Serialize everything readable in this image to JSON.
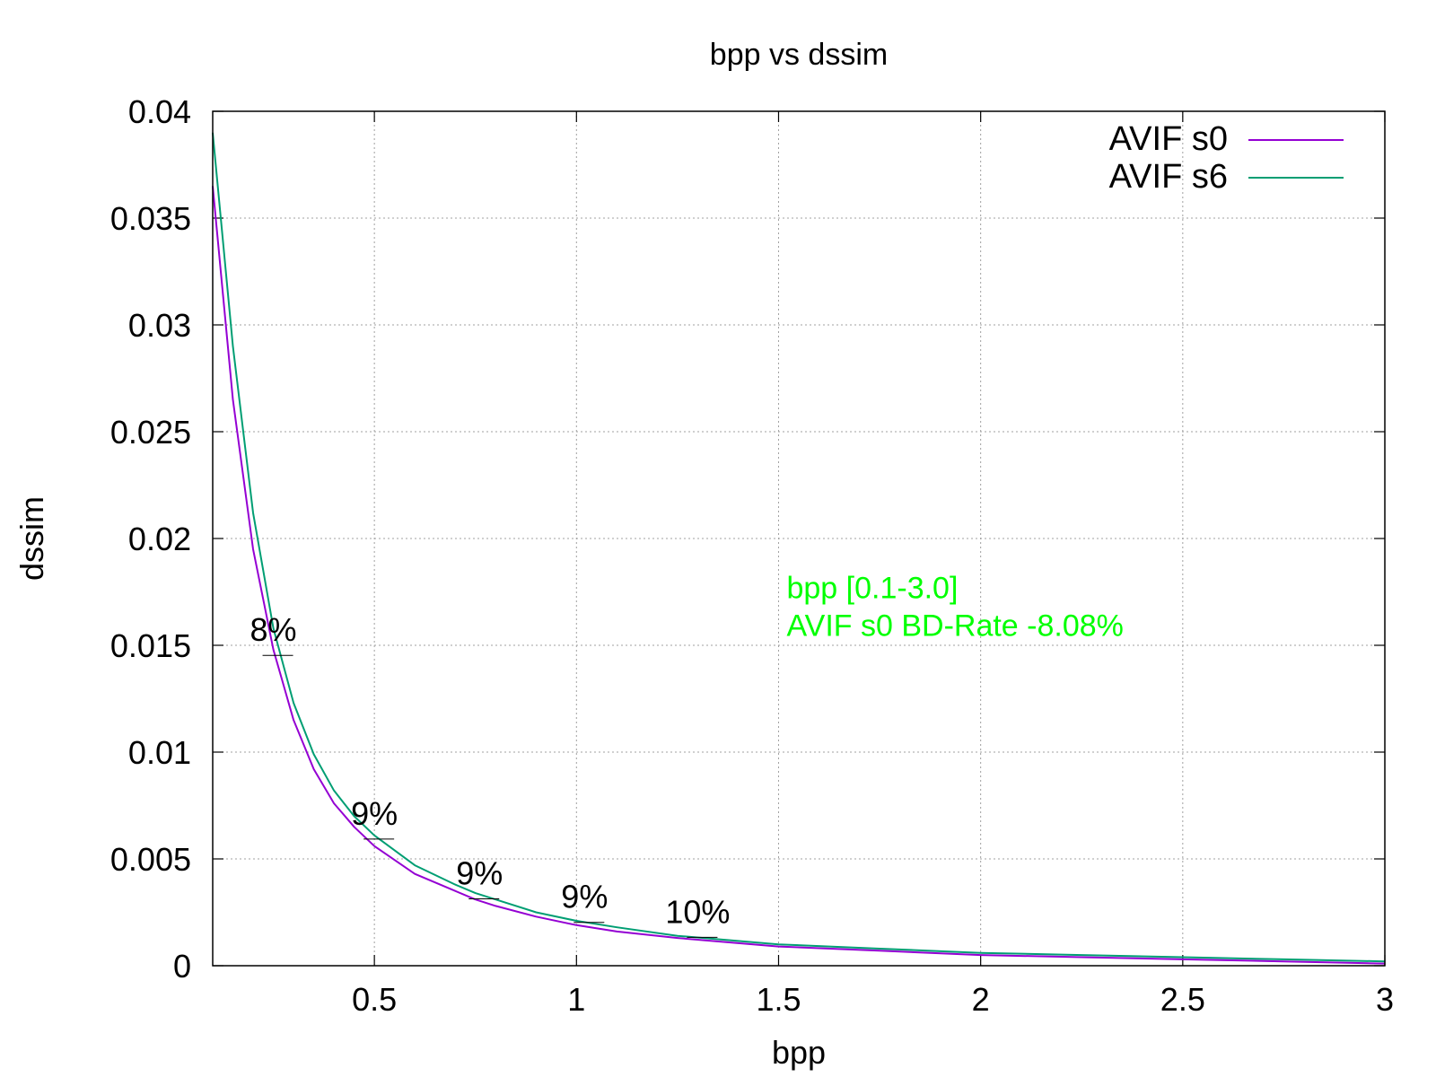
{
  "chart_data": {
    "type": "line",
    "title": "bpp vs dssim",
    "xlabel": "bpp",
    "ylabel": "dssim",
    "xlim": [
      0.1,
      3.0
    ],
    "ylim": [
      0,
      0.04
    ],
    "xticks": [
      "0.5",
      "1",
      "1.5",
      "2",
      "2.5",
      "3"
    ],
    "yticks": [
      "0",
      "0.005",
      "0.01",
      "0.015",
      "0.02",
      "0.025",
      "0.03",
      "0.035",
      "0.04"
    ],
    "grid": true,
    "legend_position": "top-right",
    "series": [
      {
        "name": "AVIF s0",
        "color": "#9400d3",
        "x": [
          0.1,
          0.15,
          0.2,
          0.25,
          0.3,
          0.35,
          0.4,
          0.45,
          0.5,
          0.6,
          0.7,
          0.75,
          0.8,
          0.9,
          1.0,
          1.1,
          1.25,
          1.5,
          1.75,
          2.0,
          2.25,
          2.5,
          2.75,
          3.0
        ],
        "y": [
          0.0365,
          0.0265,
          0.0195,
          0.0148,
          0.0115,
          0.0092,
          0.0076,
          0.0065,
          0.0056,
          0.0043,
          0.0035,
          0.0031,
          0.0028,
          0.0023,
          0.0019,
          0.0016,
          0.0013,
          0.0009,
          0.0007,
          0.0005,
          0.0004,
          0.0003,
          0.0002,
          0.0001
        ]
      },
      {
        "name": "AVIF s6",
        "color": "#009e73",
        "x": [
          0.1,
          0.15,
          0.2,
          0.25,
          0.3,
          0.35,
          0.4,
          0.45,
          0.5,
          0.6,
          0.7,
          0.75,
          0.8,
          0.9,
          1.0,
          1.1,
          1.25,
          1.5,
          1.75,
          2.0,
          2.25,
          2.5,
          2.75,
          3.0
        ],
        "y": [
          0.039,
          0.029,
          0.0212,
          0.0158,
          0.0123,
          0.0099,
          0.0082,
          0.007,
          0.0061,
          0.0047,
          0.0038,
          0.0034,
          0.0031,
          0.0025,
          0.0021,
          0.0018,
          0.0014,
          0.001,
          0.0008,
          0.0006,
          0.0005,
          0.0004,
          0.0003,
          0.0002
        ]
      }
    ],
    "percent_labels": [
      {
        "text": "8%",
        "x": 0.25,
        "y": 0.0152
      },
      {
        "text": "9%",
        "x": 0.5,
        "y": 0.0066
      },
      {
        "text": "9%",
        "x": 0.76,
        "y": 0.0038
      },
      {
        "text": "9%",
        "x": 1.02,
        "y": 0.0027
      },
      {
        "text": "10%",
        "x": 1.3,
        "y": 0.002
      }
    ],
    "annotation": {
      "color": "#00ff00",
      "lines": [
        "bpp [0.1-3.0]",
        "AVIF s0 BD-Rate -8.08%"
      ],
      "x": 1.52,
      "y": 0.0172
    }
  }
}
